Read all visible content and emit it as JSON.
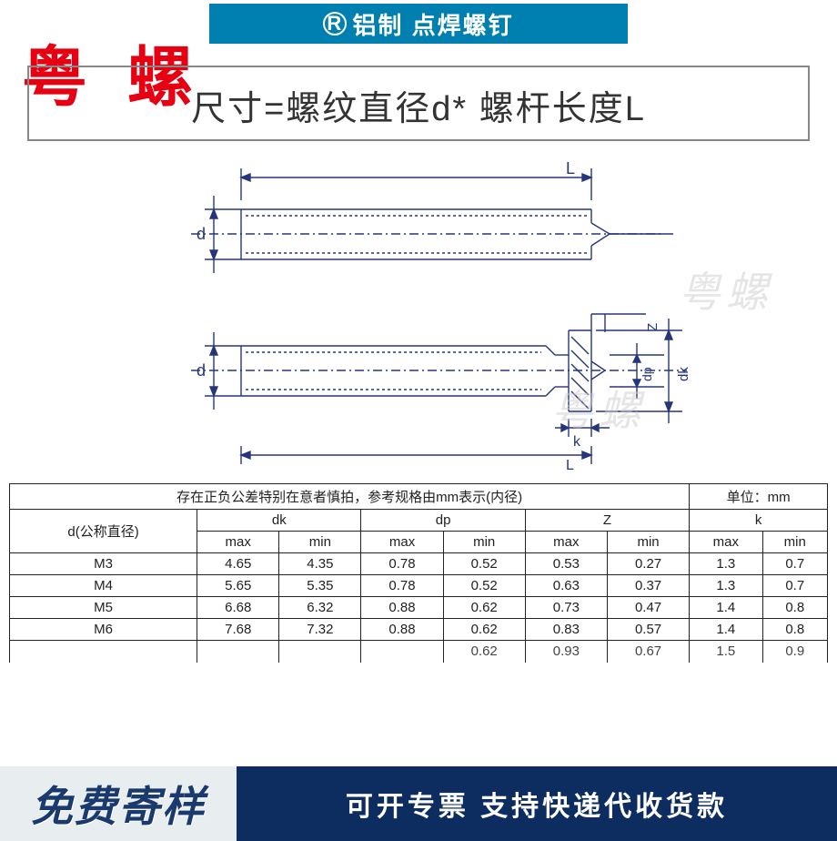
{
  "header": {
    "r_mark": "R",
    "title": "铝制  点焊螺钉",
    "brand_overlay": "粤 螺"
  },
  "subtitle": "尺寸=螺纹直径d* 螺杆长度L",
  "diagram": {
    "top_labels": {
      "d": "d",
      "L": "L"
    },
    "bottom_labels": {
      "d": "d",
      "k": "k",
      "L": "L",
      "Z": "Z",
      "dp": "dp",
      "dk": "dk"
    },
    "watermark": "粤螺",
    "line_color": "#27357a",
    "stroke_width": 1.4
  },
  "table": {
    "note": "存在正负公差特别在意者慎拍，参考规格由mm表示(内径)",
    "unit_label": "单位：mm",
    "row_header": "d(公称直径)",
    "col_groups": [
      "dk",
      "dp",
      "Z",
      "k"
    ],
    "subcols": [
      "max",
      "min"
    ],
    "rows": [
      {
        "name": "M3",
        "vals": [
          "4.65",
          "4.35",
          "0.78",
          "0.52",
          "0.53",
          "0.27",
          "1.3",
          "0.7"
        ]
      },
      {
        "name": "M4",
        "vals": [
          "5.65",
          "5.35",
          "0.78",
          "0.52",
          "0.63",
          "0.37",
          "1.3",
          "0.7"
        ]
      },
      {
        "name": "M5",
        "vals": [
          "6.68",
          "6.32",
          "0.88",
          "0.62",
          "0.73",
          "0.47",
          "1.4",
          "0.8"
        ]
      },
      {
        "name": "M6",
        "vals": [
          "7.68",
          "7.32",
          "0.88",
          "0.62",
          "0.83",
          "0.57",
          "1.4",
          "0.8"
        ]
      }
    ],
    "partial_row": {
      "name": "",
      "vals": [
        "",
        "",
        "",
        "0.62",
        "0.93",
        "0.67",
        "1.5",
        "0.9"
      ]
    }
  },
  "footer": {
    "left": "免费寄样",
    "right": "可开专票 支持快递代收货款"
  },
  "colors": {
    "title_bg": "#0080b0",
    "brand_red": "#e60012",
    "footer_left_bg": "#e8eef0",
    "footer_left_fg": "#1a3a6e",
    "footer_right_bg": "#0d2d60",
    "border": "#222222"
  }
}
